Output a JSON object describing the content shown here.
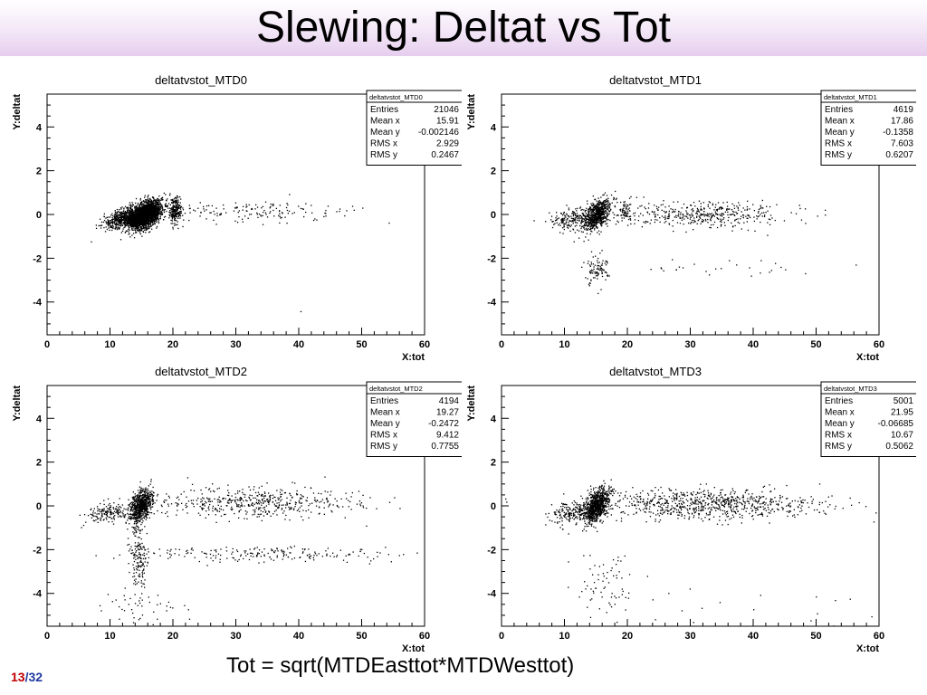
{
  "slide": {
    "title": "Slewing: Deltat vs Tot",
    "formula": "Tot = sqrt(MTDEasttot*MTDWesttot)",
    "page": {
      "current": "13",
      "separator": "/",
      "total": "32"
    }
  },
  "chart_data": [
    {
      "type": "scatter",
      "title": "deltatvstot_MTD0",
      "xlabel": "X:tot",
      "ylabel": "Y:deltat",
      "xlim": [
        0,
        60
      ],
      "ylim": [
        -5.5,
        5.5
      ],
      "xticks": [
        "0",
        "10",
        "20",
        "30",
        "40",
        "50",
        "60"
      ],
      "yticks": [
        "-4",
        "-2",
        "0",
        "2",
        "4"
      ],
      "stats": {
        "name": "deltatvstot_MTD0",
        "rows": [
          {
            "label": "Entries",
            "value": "21046"
          },
          {
            "label": "Mean x",
            "value": "15.91"
          },
          {
            "label": "Mean y",
            "value": "-0.002146"
          },
          {
            "label": "RMS x",
            "value": "2.929"
          },
          {
            "label": "RMS y",
            "value": "0.2467"
          }
        ]
      },
      "clusters": [
        {
          "x": 15.5,
          "y": 0.0,
          "sx": 1.3,
          "sy": 0.28,
          "n": 2200,
          "tilt": 0.12
        },
        {
          "x": 12.0,
          "y": -0.15,
          "sx": 1.6,
          "sy": 0.22,
          "n": 500,
          "tilt": 0.08
        },
        {
          "x": 20.3,
          "y": 0.25,
          "sx": 0.5,
          "sy": 0.25,
          "n": 220,
          "tilt": 0
        },
        {
          "x": 32.0,
          "y": 0.2,
          "sx": 8.0,
          "sy": 0.25,
          "n": 160,
          "tilt": 0
        },
        {
          "x": 40.0,
          "y": -4.5,
          "sx": 0.2,
          "sy": 0.1,
          "n": 1,
          "tilt": 0
        }
      ]
    },
    {
      "type": "scatter",
      "title": "deltatvstot_MTD1",
      "xlabel": "X:tot",
      "ylabel": "Y:deltat",
      "xlim": [
        0,
        60
      ],
      "ylim": [
        -5.5,
        5.5
      ],
      "xticks": [
        "0",
        "10",
        "20",
        "30",
        "40",
        "50",
        "60"
      ],
      "yticks": [
        "-4",
        "-2",
        "0",
        "2",
        "4"
      ],
      "stats": {
        "name": "deltatvstot_MTD1",
        "rows": [
          {
            "label": "Entries",
            "value": "4619"
          },
          {
            "label": "Mean x",
            "value": "17.86"
          },
          {
            "label": "Mean y",
            "value": "-0.1358"
          },
          {
            "label": "RMS x",
            "value": "7.603"
          },
          {
            "label": "RMS y",
            "value": "0.6207"
          }
        ]
      },
      "clusters": [
        {
          "x": 15.0,
          "y": 0.0,
          "sx": 1.1,
          "sy": 0.3,
          "n": 700,
          "tilt": 0.15
        },
        {
          "x": 11.0,
          "y": -0.2,
          "sx": 1.8,
          "sy": 0.25,
          "n": 180,
          "tilt": 0.05
        },
        {
          "x": 19.5,
          "y": 0.2,
          "sx": 0.5,
          "sy": 0.25,
          "n": 60,
          "tilt": 0
        },
        {
          "x": 32.0,
          "y": 0.0,
          "sx": 7.0,
          "sy": 0.3,
          "n": 420,
          "tilt": 0
        },
        {
          "x": 15.0,
          "y": -2.5,
          "sx": 0.9,
          "sy": 0.35,
          "n": 90,
          "tilt": 0
        },
        {
          "x": 35.0,
          "y": -2.4,
          "sx": 12.0,
          "sy": 0.2,
          "n": 30,
          "tilt": 0
        }
      ]
    },
    {
      "type": "scatter",
      "title": "deltatvstot_MTD2",
      "xlabel": "X:tot",
      "ylabel": "Y:deltat",
      "xlim": [
        0,
        60
      ],
      "ylim": [
        -5.5,
        5.5
      ],
      "xticks": [
        "0",
        "10",
        "20",
        "30",
        "40",
        "50",
        "60"
      ],
      "yticks": [
        "-4",
        "-2",
        "0",
        "2",
        "4"
      ],
      "stats": {
        "name": "deltatvstot_MTD2",
        "rows": [
          {
            "label": "Entries",
            "value": "4194"
          },
          {
            "label": "Mean x",
            "value": "19.27"
          },
          {
            "label": "Mean y",
            "value": "-0.2472"
          },
          {
            "label": "RMS x",
            "value": "9.412"
          },
          {
            "label": "RMS y",
            "value": "0.7755"
          }
        ]
      },
      "clusters": [
        {
          "x": 14.8,
          "y": 0.0,
          "sx": 0.9,
          "sy": 0.35,
          "n": 700,
          "tilt": 0.2
        },
        {
          "x": 10.0,
          "y": -0.3,
          "sx": 2.0,
          "sy": 0.25,
          "n": 160,
          "tilt": 0.05
        },
        {
          "x": 33.0,
          "y": 0.2,
          "sx": 8.0,
          "sy": 0.35,
          "n": 500,
          "tilt": 0
        },
        {
          "x": 35.0,
          "y": -2.2,
          "sx": 10.0,
          "sy": 0.18,
          "n": 200,
          "tilt": 0
        },
        {
          "x": 14.5,
          "y": -2.3,
          "sx": 0.7,
          "sy": 0.9,
          "n": 170,
          "tilt": 0
        },
        {
          "x": 16.0,
          "y": -4.5,
          "sx": 3.0,
          "sy": 0.4,
          "n": 40,
          "tilt": 0
        }
      ]
    },
    {
      "type": "scatter",
      "title": "deltatvstot_MTD3",
      "xlabel": "X:tot",
      "ylabel": "Y:deltat",
      "xlim": [
        0,
        60
      ],
      "ylim": [
        -5.5,
        5.5
      ],
      "xticks": [
        "0",
        "10",
        "20",
        "30",
        "40",
        "50",
        "60"
      ],
      "yticks": [
        "-4",
        "-2",
        "0",
        "2",
        "4"
      ],
      "stats": {
        "name": "deltatvstot_MTD3",
        "rows": [
          {
            "label": "Entries",
            "value": "5001"
          },
          {
            "label": "Mean x",
            "value": "21.95"
          },
          {
            "label": "Mean y",
            "value": "-0.06685"
          },
          {
            "label": "RMS x",
            "value": "10.67"
          },
          {
            "label": "RMS y",
            "value": "0.5062"
          }
        ]
      },
      "clusters": [
        {
          "x": 15.0,
          "y": 0.0,
          "sx": 1.0,
          "sy": 0.35,
          "n": 800,
          "tilt": 0.2
        },
        {
          "x": 11.0,
          "y": -0.3,
          "sx": 1.8,
          "sy": 0.25,
          "n": 200,
          "tilt": 0.05
        },
        {
          "x": 33.0,
          "y": 0.1,
          "sx": 9.0,
          "sy": 0.35,
          "n": 800,
          "tilt": 0
        },
        {
          "x": 17.0,
          "y": -3.5,
          "sx": 2.5,
          "sy": 0.7,
          "n": 70,
          "tilt": 0
        },
        {
          "x": 40.0,
          "y": -4.5,
          "sx": 15.0,
          "sy": 0.6,
          "n": 20,
          "tilt": 0
        }
      ]
    }
  ]
}
